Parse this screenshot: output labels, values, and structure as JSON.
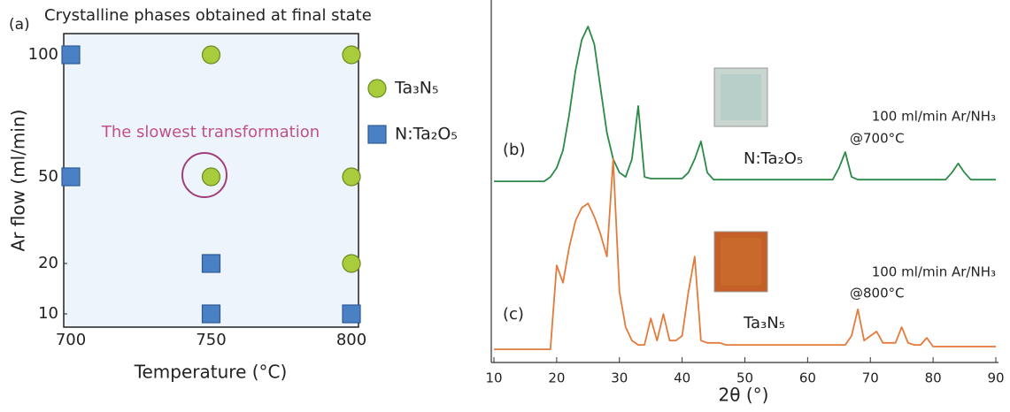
{
  "chart_data": [
    {
      "type": "scatter",
      "panel_label": "(a)",
      "title": "Crystalline phases obtained at final state",
      "xlabel": "Temperature (°C)",
      "ylabel": "Ar flow (ml/min)",
      "xlim": [
        700,
        800
      ],
      "xticks": [
        700,
        750,
        800
      ],
      "ylim": [
        10,
        100
      ],
      "yticks": [
        10,
        20,
        50,
        100
      ],
      "annotations": [
        "The slowest transformation"
      ],
      "series": [
        {
          "name": "Ta₃N₅",
          "marker": "circle",
          "color": "#a8cc3c",
          "x": [
            750,
            800,
            750,
            800,
            800
          ],
          "values": [
            100,
            100,
            50,
            50,
            20
          ]
        },
        {
          "name": "N:Ta₂O₅",
          "marker": "square",
          "color": "#4a80c4",
          "x": [
            700,
            700,
            750,
            750,
            800
          ],
          "values": [
            100,
            50,
            20,
            10,
            10
          ]
        }
      ]
    },
    {
      "type": "line",
      "xlabel": "2θ (°)",
      "xlim": [
        10,
        90
      ],
      "xticks": [
        10,
        20,
        30,
        40,
        50,
        60,
        70,
        80,
        90
      ],
      "ylim": [
        0,
        100
      ],
      "annotations": [
        "(b)",
        "N:Ta₂O₅",
        "100 ml/min Ar/NH₃",
        "@700°C",
        "(c)",
        "Ta₃N₅",
        "100 ml/min Ar/NH₃",
        "@800°C"
      ],
      "x": [
        10,
        11,
        12,
        13,
        14,
        15,
        16,
        17,
        18,
        19,
        20,
        21,
        22,
        23,
        24,
        25,
        26,
        27,
        28,
        29,
        30,
        31,
        32,
        33,
        34,
        35,
        36,
        37,
        38,
        39,
        40,
        41,
        42,
        43,
        44,
        45,
        46,
        47,
        48,
        49,
        50,
        51,
        52,
        53,
        54,
        55,
        56,
        57,
        58,
        59,
        60,
        61,
        62,
        63,
        64,
        65,
        66,
        67,
        68,
        69,
        70,
        71,
        72,
        73,
        74,
        75,
        76,
        77,
        78,
        79,
        80,
        81,
        82,
        83,
        84,
        85,
        86,
        87,
        88,
        89,
        90
      ],
      "series": [
        {
          "color": "#2a8a48",
          "values": [
            51.3,
            51.3,
            51.3,
            51.3,
            51.3,
            51.3,
            51.3,
            51.3,
            51.3,
            52.6,
            55.3,
            60.5,
            71.1,
            84.2,
            93.4,
            97.4,
            92.1,
            78.9,
            65.8,
            57.9,
            53.9,
            52.6,
            57.9,
            73.7,
            52.6,
            52.1,
            52.1,
            52.1,
            52.1,
            52.1,
            52.1,
            53.9,
            57.9,
            63.2,
            53.9,
            51.8,
            51.8,
            51.8,
            51.8,
            51.8,
            51.8,
            51.8,
            51.8,
            51.8,
            51.8,
            51.8,
            51.8,
            51.8,
            51.8,
            51.8,
            51.8,
            51.8,
            51.8,
            51.8,
            51.8,
            55.3,
            60.0,
            52.6,
            51.8,
            51.8,
            51.8,
            51.8,
            51.8,
            51.8,
            51.8,
            51.8,
            51.8,
            51.8,
            51.8,
            51.8,
            51.8,
            51.8,
            51.8,
            53.9,
            56.6,
            53.9,
            51.8,
            51.8,
            51.8,
            51.8,
            51.8
          ]
        },
        {
          "color": "#e27b3c",
          "values": [
            1.3,
            1.3,
            1.3,
            1.3,
            1.3,
            1.3,
            1.3,
            1.3,
            1.3,
            1.3,
            26.3,
            21.1,
            31.6,
            39.5,
            43.4,
            44.7,
            40.8,
            35.5,
            28.9,
            57.9,
            18.4,
            7.9,
            3.9,
            2.6,
            2.6,
            10.5,
            3.9,
            11.8,
            3.9,
            3.9,
            5.3,
            18.4,
            28.9,
            3.9,
            3.2,
            3.2,
            3.2,
            2.6,
            2.6,
            2.6,
            2.6,
            2.6,
            2.6,
            2.6,
            2.6,
            2.6,
            2.6,
            2.6,
            2.6,
            2.6,
            2.6,
            2.6,
            2.6,
            2.6,
            2.6,
            2.6,
            2.6,
            5.3,
            13.2,
            3.9,
            5.3,
            6.6,
            3.2,
            3.2,
            3.2,
            7.9,
            3.2,
            2.6,
            2.6,
            4.7,
            2.1,
            2.1,
            2.1,
            2.1,
            2.1,
            2.1,
            2.1,
            2.1,
            2.1,
            2.1,
            2.1
          ]
        }
      ]
    }
  ]
}
